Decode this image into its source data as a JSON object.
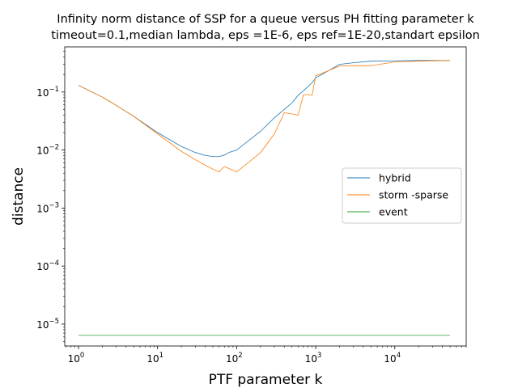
{
  "chart_data": {
    "type": "line",
    "title": "Infinity norm distance of SSP for a queue versus PH fitting parameter k",
    "subtitle": "timeout=0.1,median lambda, eps =1E-6, eps ref=1E-20,standart epsilon",
    "xlabel": "PTF parameter k",
    "ylabel": "distance",
    "xscale": "log",
    "yscale": "log",
    "xlim": [
      0.67,
      80000
    ],
    "ylim": [
      4.2e-06,
      0.6
    ],
    "x_ticks": [
      {
        "base": "10",
        "exp": "0",
        "value": 1
      },
      {
        "base": "10",
        "exp": "1",
        "value": 10
      },
      {
        "base": "10",
        "exp": "2",
        "value": 100
      },
      {
        "base": "10",
        "exp": "3",
        "value": 1000
      },
      {
        "base": "10",
        "exp": "4",
        "value": 10000
      }
    ],
    "y_ticks": [
      {
        "base": "10",
        "exp": "−5",
        "value": 1e-05
      },
      {
        "base": "10",
        "exp": "−4",
        "value": 0.0001
      },
      {
        "base": "10",
        "exp": "−3",
        "value": 0.001
      },
      {
        "base": "10",
        "exp": "−2",
        "value": 0.01
      },
      {
        "base": "10",
        "exp": "−1",
        "value": 0.1
      }
    ],
    "grid": false,
    "legend_position": "center-right",
    "series": [
      {
        "name": "hybrid",
        "color": "#1f77b4",
        "x": [
          1,
          2,
          3,
          5,
          10,
          20,
          30,
          40,
          50,
          60,
          70,
          80,
          100,
          200,
          300,
          400,
          500,
          600,
          700,
          800,
          900,
          1000,
          2000,
          3000,
          5000,
          10000,
          20000,
          50000
        ],
        "y": [
          0.13,
          0.082,
          0.059,
          0.038,
          0.02,
          0.0115,
          0.0091,
          0.0081,
          0.0077,
          0.0077,
          0.0082,
          0.0091,
          0.01,
          0.021,
          0.036,
          0.05,
          0.065,
          0.088,
          0.105,
          0.125,
          0.145,
          0.175,
          0.3,
          0.32,
          0.34,
          0.345,
          0.35,
          0.35
        ]
      },
      {
        "name": "storm -sparse",
        "color": "#ff7f0e",
        "x": [
          1,
          2,
          3,
          5,
          10,
          20,
          30,
          40,
          50,
          60,
          70,
          80,
          100,
          200,
          300,
          400,
          500,
          600,
          700,
          800,
          900,
          1000,
          2000,
          3000,
          5000,
          10000,
          20000,
          50000
        ],
        "y": [
          0.13,
          0.082,
          0.059,
          0.038,
          0.019,
          0.0095,
          0.0068,
          0.0055,
          0.0047,
          0.0042,
          0.0052,
          0.0048,
          0.0042,
          0.009,
          0.019,
          0.044,
          0.042,
          0.04,
          0.09,
          0.09,
          0.088,
          0.19,
          0.28,
          0.285,
          0.285,
          0.33,
          0.34,
          0.35
        ]
      },
      {
        "name": "event",
        "color": "#2ca02c",
        "x": [
          1,
          50000
        ],
        "y": [
          6.4e-06,
          6.4e-06
        ]
      }
    ]
  }
}
